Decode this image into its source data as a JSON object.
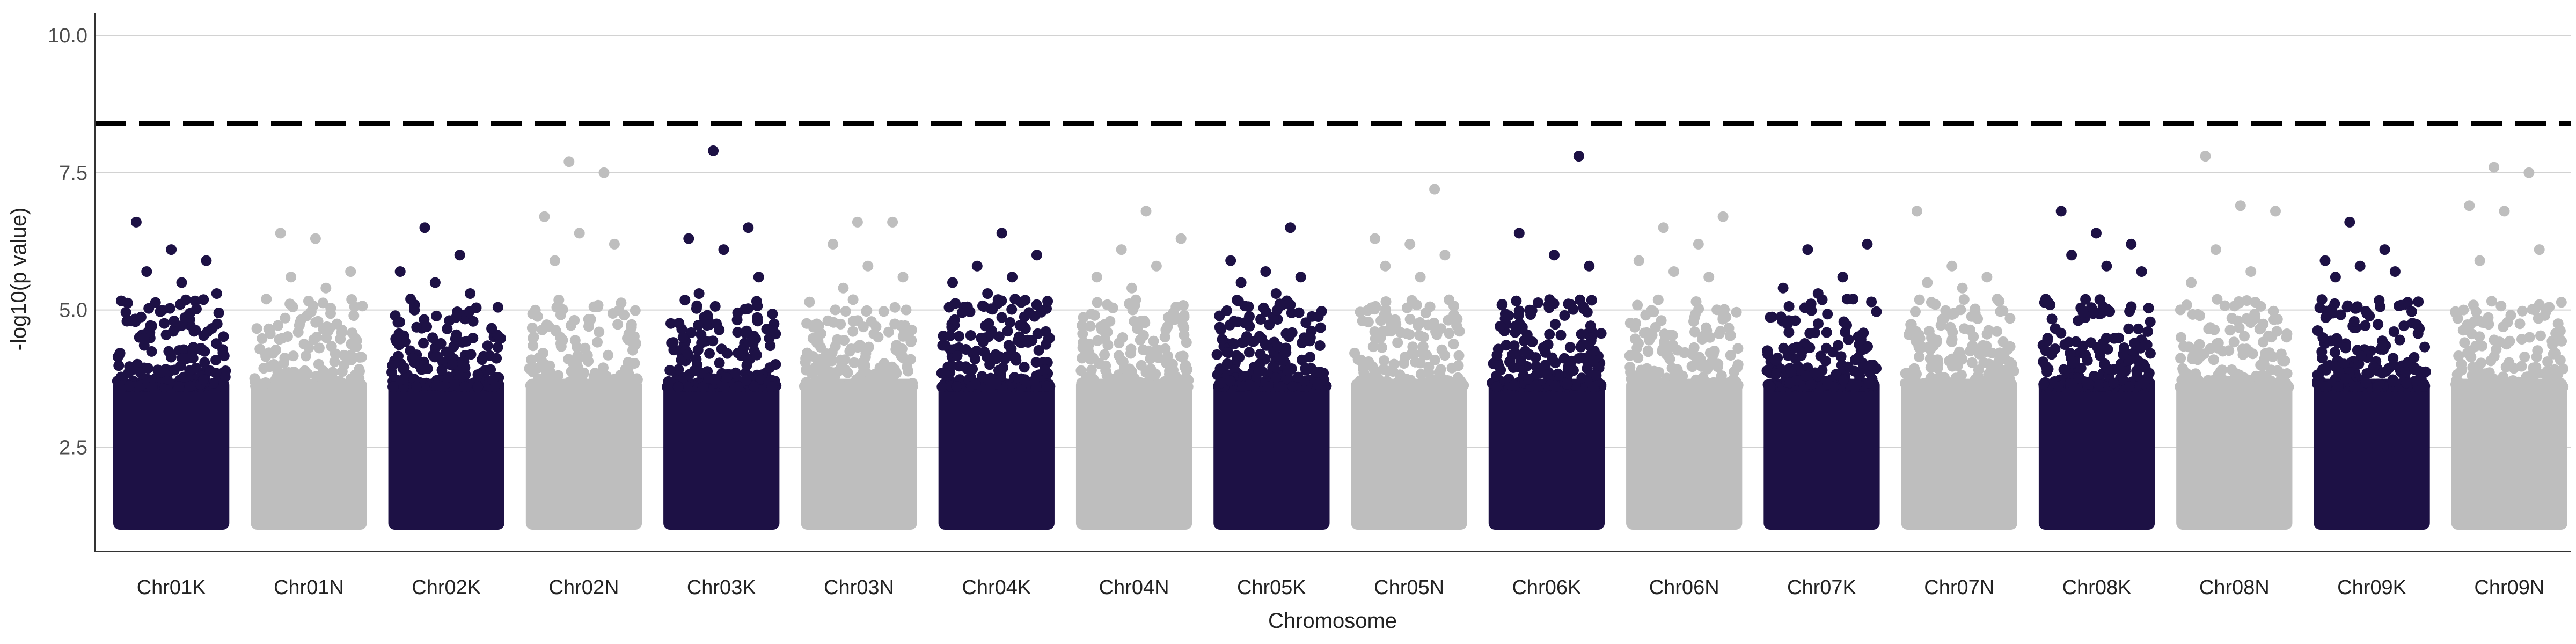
{
  "chart_data": {
    "type": "scatter",
    "title": "",
    "xlabel": "Chromosome",
    "ylabel": "-log10(p value)",
    "ylim": [
      0.6,
      10.4
    ],
    "y_ticks": [
      "2.5",
      "5.0",
      "7.5",
      "10.0"
    ],
    "grid": "horizontal major lines only",
    "significance_threshold": 8.4,
    "colors": {
      "dark": "#1d1145",
      "light": "#bebebe",
      "threshold": "#000000",
      "grid": "#d2d2d2"
    },
    "categories": [
      "Chr01K",
      "Chr01N",
      "Chr02K",
      "Chr02N",
      "Chr03K",
      "Chr03N",
      "Chr04K",
      "Chr04N",
      "Chr05K",
      "Chr05N",
      "Chr06K",
      "Chr06N",
      "Chr07K",
      "Chr07N",
      "Chr08K",
      "Chr08N",
      "Chr09K",
      "Chr09N"
    ],
    "series": [
      {
        "values": [
          {
            "chrom": "Chr01K",
            "top": [
              6.6,
              6.1,
              5.9,
              5.7,
              5.5,
              5.3
            ]
          },
          {
            "chrom": "Chr01N",
            "top": [
              6.4,
              6.3,
              5.7,
              5.6,
              5.4,
              5.2
            ]
          },
          {
            "chrom": "Chr02K",
            "top": [
              6.5,
              6.0,
              5.7,
              5.5,
              5.3,
              5.2
            ]
          },
          {
            "chrom": "Chr02N",
            "top": [
              7.7,
              7.5,
              6.7,
              6.4,
              6.2,
              5.9
            ]
          },
          {
            "chrom": "Chr03K",
            "top": [
              7.9,
              6.5,
              6.3,
              6.1,
              5.6,
              5.3
            ]
          },
          {
            "chrom": "Chr03N",
            "top": [
              6.6,
              6.6,
              6.2,
              5.8,
              5.6,
              5.4
            ]
          },
          {
            "chrom": "Chr04K",
            "top": [
              6.4,
              6.0,
              5.8,
              5.6,
              5.5,
              5.3
            ]
          },
          {
            "chrom": "Chr04N",
            "top": [
              6.8,
              6.3,
              6.1,
              5.8,
              5.6,
              5.4
            ]
          },
          {
            "chrom": "Chr05K",
            "top": [
              6.5,
              5.9,
              5.7,
              5.6,
              5.5,
              5.3
            ]
          },
          {
            "chrom": "Chr05N",
            "top": [
              7.2,
              6.3,
              6.2,
              6.0,
              5.8,
              5.6
            ]
          },
          {
            "chrom": "Chr06K",
            "top": [
              7.8,
              6.4,
              6.0,
              5.8,
              5.0,
              4.9
            ]
          },
          {
            "chrom": "Chr06N",
            "top": [
              6.7,
              6.5,
              6.2,
              5.9,
              5.7,
              5.6
            ]
          },
          {
            "chrom": "Chr07K",
            "top": [
              6.2,
              6.1,
              5.6,
              5.4,
              5.3,
              5.2
            ]
          },
          {
            "chrom": "Chr07N",
            "top": [
              6.8,
              5.8,
              5.6,
              5.5,
              5.4,
              5.2
            ]
          },
          {
            "chrom": "Chr08K",
            "top": [
              6.8,
              6.4,
              6.2,
              6.0,
              5.8,
              5.7
            ]
          },
          {
            "chrom": "Chr08N",
            "top": [
              7.8,
              6.9,
              6.8,
              6.1,
              5.7,
              5.5
            ]
          },
          {
            "chrom": "Chr09K",
            "top": [
              6.6,
              6.1,
              5.9,
              5.8,
              5.7,
              5.6
            ]
          },
          {
            "chrom": "Chr09N",
            "top": [
              7.6,
              7.5,
              6.9,
              6.8,
              6.1,
              5.9
            ]
          }
        ]
      }
    ]
  }
}
